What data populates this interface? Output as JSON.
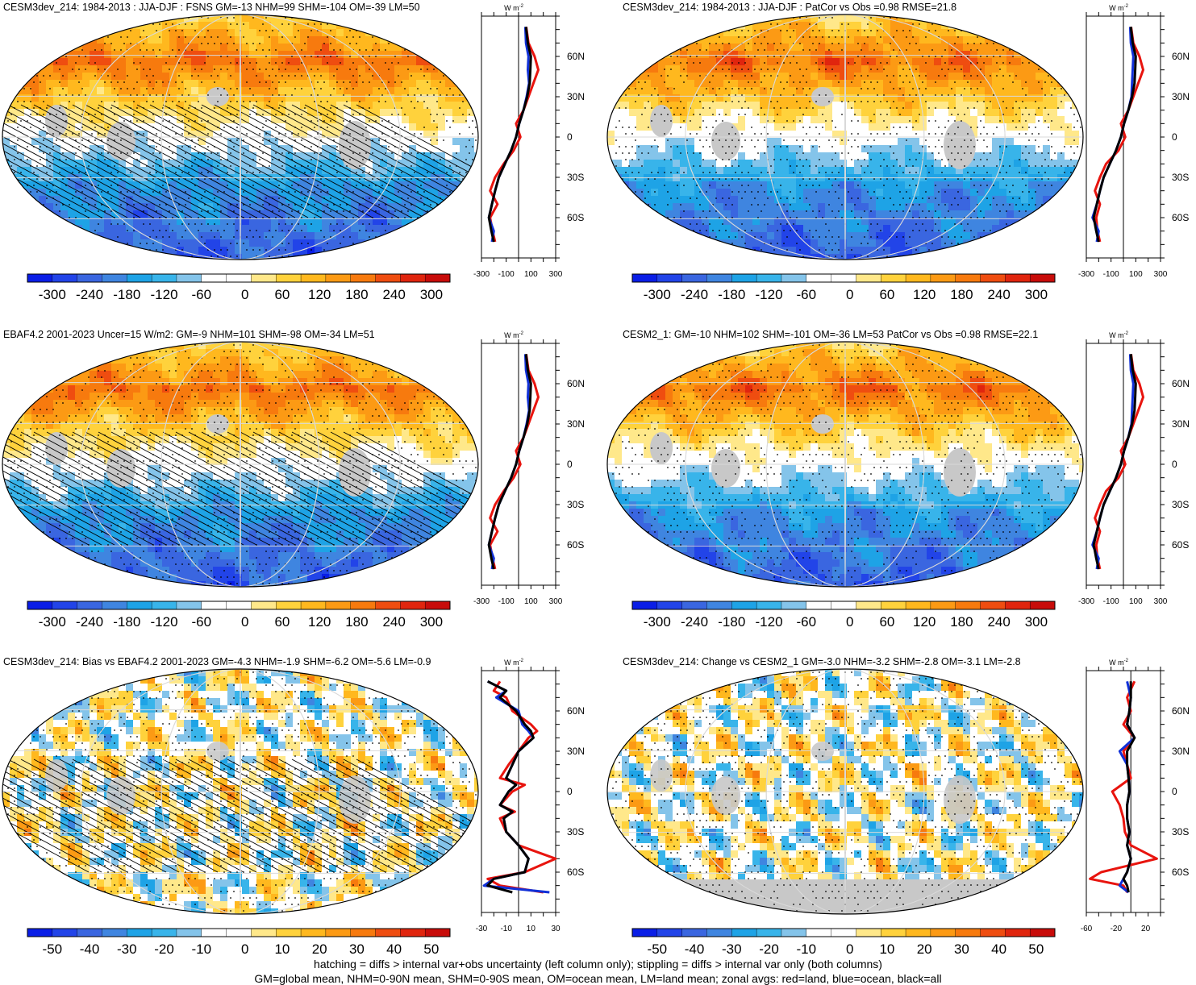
{
  "footer": {
    "line1": "hatching = diffs > internal var+obs uncertainty (left column only); stippling = diffs > internal var only (both columns)",
    "line2": "GM=global mean, NHM=0-90N mean, SHM=0-90S mean, OM=ocean mean, LM=land mean; zonal avgs: red=land, blue=ocean, black=all"
  },
  "colors": {
    "land_line": "#e8140e",
    "ocean_line": "#1030d8",
    "all_line": "#000000",
    "missing_gray": "#c8c8c8",
    "palette": [
      "#0a1ee6",
      "#2244e8",
      "#3a66e0",
      "#3f85e0",
      "#1ea3e6",
      "#38b4ea",
      "#84c4ea",
      "#ffffff",
      "#ffffff",
      "#ffe88a",
      "#ffd23c",
      "#ffb81e",
      "#fc9a14",
      "#f77a0e",
      "#ef4d10",
      "#e0250e",
      "#c80c0a"
    ]
  },
  "chart_data": [
    {
      "type": "heatmap",
      "title": "CESM3dev_214: 1984-2013 : JJA-DJF : FSNS GM=-13 NHM=99 SHM=-104 OM=-39 LM=50",
      "colorbar_labels": [
        "-300",
        "-240",
        "-180",
        "-120",
        "-60",
        "0",
        "60",
        "120",
        "180",
        "240",
        "300"
      ],
      "colorbar_range": [
        -330,
        330
      ],
      "profile": {
        "unit": "W m",
        "unit_exp": "-2",
        "xlim": [
          -300,
          300
        ],
        "xticks": [
          -300,
          -100,
          100,
          300
        ],
        "lat_labels": [
          "60N",
          "30N",
          "0",
          "30S",
          "60S"
        ],
        "series": [
          {
            "name": "all",
            "lat": [
              82,
              70,
              60,
              50,
              40,
              30,
              20,
              10,
              0,
              -10,
              -20,
              -30,
              -40,
              -50,
              -60,
              -70,
              -78
            ],
            "values": [
              60,
              75,
              100,
              95,
              90,
              70,
              40,
              5,
              -20,
              -60,
              -110,
              -160,
              -190,
              -215,
              -240,
              -220,
              -200
            ]
          },
          {
            "name": "land",
            "lat": [
              82,
              70,
              60,
              50,
              40,
              30,
              20,
              10,
              0,
              -10,
              -20,
              -30,
              -40,
              -50,
              -60,
              -70,
              -78
            ],
            "values": [
              62,
              80,
              130,
              160,
              120,
              80,
              40,
              -20,
              15,
              -40,
              -120,
              -190,
              -230,
              -170,
              -230,
              -210,
              -190
            ]
          },
          {
            "name": "ocean",
            "lat": [
              82,
              70,
              60,
              50,
              40,
              30,
              20,
              10,
              0,
              -10,
              -20,
              -30,
              -40,
              -50,
              -60,
              -70,
              -78
            ],
            "values": [
              55,
              60,
              80,
              75,
              85,
              65,
              40,
              5,
              -20,
              -60,
              -110,
              -160,
              -190,
              -215,
              -240,
              -200,
              -215
            ]
          }
        ]
      }
    },
    {
      "type": "heatmap",
      "title": "CESM3dev_214: 1984-2013 : JJA-DJF : PatCor vs Obs =0.98 RMSE=21.8",
      "colorbar_labels": [
        "-300",
        "-240",
        "-180",
        "-120",
        "-60",
        "0",
        "60",
        "120",
        "180",
        "240",
        "300"
      ],
      "colorbar_range": [
        -330,
        330
      ],
      "profile": {
        "unit": "W m",
        "unit_exp": "-2",
        "xlim": [
          -300,
          300
        ],
        "xticks": [
          -300,
          -100,
          100,
          300
        ],
        "lat_labels": [
          "60N",
          "30N",
          "0",
          "30S",
          "60S"
        ],
        "series": [
          {
            "name": "all",
            "lat": [
              82,
              70,
              60,
              50,
              40,
              30,
              20,
              10,
              0,
              -10,
              -20,
              -30,
              -40,
              -50,
              -60,
              -70,
              -78
            ],
            "values": [
              60,
              75,
              100,
              95,
              90,
              70,
              40,
              5,
              -20,
              -60,
              -110,
              -160,
              -190,
              -215,
              -240,
              -220,
              -200
            ]
          },
          {
            "name": "land",
            "lat": [
              82,
              70,
              60,
              50,
              40,
              30,
              20,
              10,
              0,
              -10,
              -20,
              -30,
              -40,
              -50,
              -60,
              -70,
              -78
            ],
            "values": [
              62,
              80,
              130,
              160,
              120,
              80,
              40,
              -20,
              15,
              -40,
              -140,
              -190,
              -230,
              -190,
              -220,
              -210,
              -190
            ]
          },
          {
            "name": "ocean",
            "lat": [
              82,
              70,
              60,
              50,
              40,
              30,
              20,
              10,
              0,
              -10,
              -20,
              -30,
              -40,
              -50,
              -60,
              -70,
              -78
            ],
            "values": [
              55,
              60,
              80,
              75,
              70,
              65,
              40,
              5,
              -20,
              -60,
              -110,
              -160,
              -190,
              -215,
              -250,
              -200,
              -215
            ]
          }
        ]
      }
    },
    {
      "type": "heatmap",
      "title": "EBAF4.2 2001-2023 Uncer=15 W/m2: GM=-9 NHM=101 SHM=-98 OM=-34 LM=51",
      "colorbar_labels": [
        "-300",
        "-240",
        "-180",
        "-120",
        "-60",
        "0",
        "60",
        "120",
        "180",
        "240",
        "300"
      ],
      "colorbar_range": [
        -330,
        330
      ],
      "profile": {
        "unit": "W m",
        "unit_exp": "-2",
        "xlim": [
          -300,
          300
        ],
        "xticks": [
          -300,
          -100,
          100,
          300
        ],
        "lat_labels": [
          "60N",
          "30N",
          "0",
          "30S",
          "60S"
        ],
        "series": [
          {
            "name": "all",
            "lat": [
              82,
              70,
              60,
              50,
              40,
              30,
              20,
              10,
              0,
              -10,
              -20,
              -30,
              -40,
              -50,
              -60,
              -70,
              -78
            ],
            "values": [
              60,
              75,
              100,
              95,
              90,
              70,
              40,
              5,
              -20,
              -60,
              -110,
              -160,
              -190,
              -215,
              -240,
              -220,
              -200
            ]
          },
          {
            "name": "land",
            "lat": [
              82,
              70,
              60,
              50,
              40,
              30,
              20,
              10,
              0,
              -10,
              -20,
              -30,
              -40,
              -50,
              -60,
              -70,
              -78
            ],
            "values": [
              62,
              80,
              130,
              160,
              120,
              80,
              40,
              -20,
              15,
              -40,
              -120,
              -190,
              -230,
              -170,
              -230,
              -210,
              -190
            ]
          },
          {
            "name": "ocean",
            "lat": [
              82,
              70,
              60,
              50,
              40,
              30,
              20,
              10,
              0,
              -10,
              -20,
              -30,
              -40,
              -50,
              -60,
              -70,
              -78
            ],
            "values": [
              55,
              60,
              80,
              75,
              85,
              65,
              40,
              5,
              -20,
              -60,
              -110,
              -160,
              -190,
              -215,
              -240,
              -200,
              -215
            ]
          }
        ]
      }
    },
    {
      "type": "heatmap",
      "title": "CESM2_1: GM=-10 NHM=102 SHM=-101 OM=-36 LM=53 PatCor vs Obs =0.98 RMSE=22.1",
      "colorbar_labels": [
        "-300",
        "-240",
        "-180",
        "-120",
        "-60",
        "0",
        "60",
        "120",
        "180",
        "240",
        "300"
      ],
      "colorbar_range": [
        -330,
        330
      ],
      "profile": {
        "unit": "W m",
        "unit_exp": "-2",
        "xlim": [
          -300,
          300
        ],
        "xticks": [
          -300,
          -100,
          100,
          300
        ],
        "lat_labels": [
          "60N",
          "30N",
          "0",
          "30S",
          "60S"
        ],
        "series": [
          {
            "name": "all",
            "lat": [
              82,
              70,
              60,
              50,
              40,
              30,
              20,
              10,
              0,
              -10,
              -20,
              -30,
              -40,
              -50,
              -60,
              -70,
              -78
            ],
            "values": [
              60,
              75,
              100,
              95,
              90,
              70,
              40,
              5,
              -20,
              -60,
              -110,
              -160,
              -190,
              -215,
              -240,
              -220,
              -200
            ]
          },
          {
            "name": "land",
            "lat": [
              82,
              70,
              60,
              50,
              40,
              30,
              20,
              10,
              0,
              -10,
              -20,
              -30,
              -40,
              -50,
              -60,
              -70,
              -78
            ],
            "values": [
              62,
              80,
              130,
              160,
              120,
              80,
              40,
              -20,
              15,
              -40,
              -140,
              -190,
              -230,
              -190,
              -220,
              -210,
              -190
            ]
          },
          {
            "name": "ocean",
            "lat": [
              82,
              70,
              60,
              50,
              40,
              30,
              20,
              10,
              0,
              -10,
              -20,
              -30,
              -40,
              -50,
              -60,
              -70,
              -78
            ],
            "values": [
              55,
              60,
              80,
              75,
              70,
              65,
              40,
              5,
              -20,
              -60,
              -110,
              -160,
              -190,
              -215,
              -250,
              -200,
              -215
            ]
          }
        ]
      }
    },
    {
      "type": "heatmap",
      "title": "CESM3dev_214: Bias vs EBAF4.2 2001-2023 GM=-4.3 NHM=-1.9 SHM=-6.2 OM=-5.6 LM=-0.9",
      "colorbar_labels": [
        "-50",
        "-40",
        "-30",
        "-20",
        "-10",
        "0",
        "10",
        "20",
        "30",
        "40",
        "50"
      ],
      "colorbar_range": [
        -55,
        55
      ],
      "profile": {
        "unit": "W m",
        "unit_exp": "-2",
        "xlim": [
          -30,
          30
        ],
        "xticks": [
          -30,
          -10,
          10,
          30
        ],
        "lat_labels": [
          "60N",
          "30N",
          "0",
          "30S",
          "60S"
        ],
        "series": [
          {
            "name": "all",
            "lat": [
              82,
              75,
              70,
              60,
              50,
              45,
              40,
              30,
              20,
              10,
              5,
              0,
              -10,
              -15,
              -20,
              -30,
              -40,
              -50,
              -60,
              -65,
              -70,
              -75
            ],
            "values": [
              -25,
              -10,
              -15,
              -2,
              5,
              10,
              12,
              0,
              -5,
              -10,
              -2,
              -8,
              -15,
              -5,
              -12,
              -10,
              0,
              8,
              5,
              -20,
              -25,
              -5
            ]
          },
          {
            "name": "land",
            "lat": [
              82,
              75,
              70,
              60,
              50,
              45,
              40,
              30,
              20,
              10,
              5,
              0,
              -10,
              -15,
              -20,
              -30,
              -40,
              -50,
              -60,
              -65,
              -70,
              -75
            ],
            "values": [
              -15,
              -20,
              -10,
              -5,
              10,
              15,
              8,
              0,
              -8,
              -15,
              5,
              -5,
              -15,
              -3,
              -15,
              -10,
              0,
              30,
              5,
              -25,
              -15,
              20
            ]
          },
          {
            "name": "ocean",
            "lat": [
              82,
              75,
              70,
              60,
              50,
              45,
              40,
              30,
              20,
              10,
              5,
              0,
              -10,
              -15,
              -20,
              -30,
              -40,
              -50,
              -60,
              -65,
              -70,
              -75
            ],
            "values": [
              -25,
              -10,
              -18,
              0,
              3,
              8,
              12,
              0,
              -5,
              -10,
              -2,
              -8,
              -15,
              -5,
              -12,
              -10,
              0,
              8,
              5,
              -20,
              -28,
              25
            ]
          }
        ]
      }
    },
    {
      "type": "heatmap",
      "title": "CESM3dev_214: Change vs CESM2_1 GM=-3.0 NHM=-3.2 SHM=-2.8 OM=-3.1 LM=-2.8",
      "colorbar_labels": [
        "-50",
        "-40",
        "-30",
        "-20",
        "-10",
        "0",
        "10",
        "20",
        "30",
        "40",
        "50"
      ],
      "colorbar_range": [
        -55,
        55
      ],
      "profile": {
        "unit": "W m",
        "unit_exp": "-2",
        "xlim": [
          -60,
          40
        ],
        "xticks": [
          -60,
          -20,
          20
        ],
        "lat_labels": [
          "60N",
          "30N",
          "0",
          "30S",
          "60S"
        ],
        "series": [
          {
            "name": "all",
            "lat": [
              82,
              70,
              60,
              50,
              40,
              30,
              20,
              10,
              0,
              -10,
              -20,
              -30,
              -40,
              -50,
              -60,
              -65,
              -70,
              -75
            ],
            "values": [
              0,
              0,
              -2,
              -5,
              5,
              -5,
              -5,
              -3,
              -2,
              -5,
              -5,
              -2,
              -5,
              0,
              -5,
              -10,
              -5,
              -3
            ]
          },
          {
            "name": "land",
            "lat": [
              82,
              70,
              60,
              50,
              40,
              30,
              20,
              10,
              0,
              -10,
              -20,
              -30,
              -40,
              -50,
              -60,
              -65,
              -70,
              -75
            ],
            "values": [
              5,
              -5,
              0,
              -10,
              5,
              -10,
              -5,
              0,
              -25,
              -15,
              -10,
              -8,
              0,
              35,
              -40,
              -55,
              -10,
              -5
            ]
          },
          {
            "name": "ocean",
            "lat": [
              82,
              70,
              60,
              50,
              40,
              30,
              20,
              10,
              0,
              -10,
              -20,
              -30,
              -40,
              -50,
              -60,
              -65,
              -70,
              -75
            ],
            "values": [
              -5,
              0,
              -2,
              -5,
              5,
              -15,
              -5,
              -3,
              -2,
              -5,
              -5,
              -2,
              -5,
              0,
              -5,
              -10,
              -15,
              -3
            ]
          }
        ]
      }
    }
  ]
}
